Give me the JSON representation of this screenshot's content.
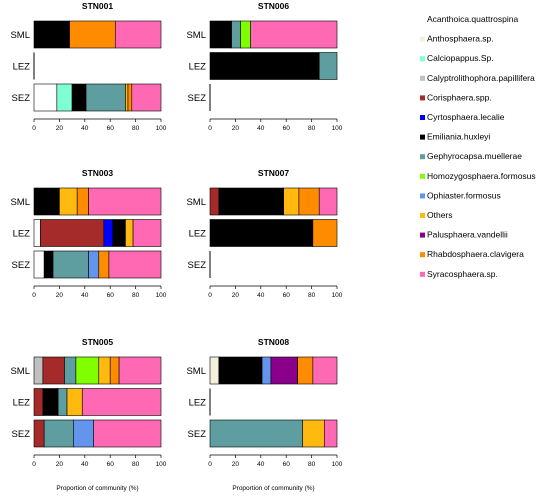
{
  "chart_data": {
    "type": "bar",
    "orientation": "horizontal",
    "stacked": true,
    "xlabel": "Proportion of community (%)",
    "xlim": [
      0,
      100
    ],
    "xticks": [
      0,
      20,
      40,
      60,
      80,
      100
    ],
    "categories": [
      "SML",
      "LEZ",
      "SEZ"
    ],
    "legend": [
      {
        "name": "Acanthoica.quattrospina",
        "color": "#ffffff"
      },
      {
        "name": "Anthosphaera.sp.",
        "color": "#f5f0dc"
      },
      {
        "name": "Calciopappus.Sp.",
        "color": "#7fffd4"
      },
      {
        "name": "Calyptrolithophora.papillifera",
        "color": "#c0c0c0"
      },
      {
        "name": "Corisphaera.spp.",
        "color": "#a52a2a"
      },
      {
        "name": "Cyrtosphaera.lecalie",
        "color": "#0000ff"
      },
      {
        "name": "Emiliania.huxleyi",
        "color": "#000000"
      },
      {
        "name": "Gephyrocapsa.muellerae",
        "color": "#5f9ea0"
      },
      {
        "name": "Homozygosphaera.formosus",
        "color": "#7fff00"
      },
      {
        "name": "Ophiaster.formosus",
        "color": "#6495ed"
      },
      {
        "name": "Others",
        "color": "#ffb90f"
      },
      {
        "name": "Palusphaera.vandellii",
        "color": "#8b008b"
      },
      {
        "name": "Rhabdosphaera.clavigera",
        "color": "#ff8c00"
      },
      {
        "name": "Syracosphaera.sp.",
        "color": "#ff69b4"
      }
    ],
    "panels": [
      {
        "title": "STN001",
        "rows": [
          {
            "label": "SML",
            "segments": [
              {
                "taxon": "Emiliania.huxleyi",
                "value": 28
              },
              {
                "taxon": "Rhabdosphaera.clavigera",
                "value": 36
              },
              {
                "taxon": "Syracosphaera.sp.",
                "value": 36
              }
            ]
          },
          {
            "label": "LEZ",
            "segments": []
          },
          {
            "label": "SEZ",
            "segments": [
              {
                "taxon": "Acanthoica.quattrospina",
                "value": 18
              },
              {
                "taxon": "Calciopappus.Sp.",
                "value": 12
              },
              {
                "taxon": "Emiliania.huxleyi",
                "value": 11
              },
              {
                "taxon": "Gephyrocapsa.muellerae",
                "value": 31
              },
              {
                "taxon": "Others",
                "value": 2
              },
              {
                "taxon": "Rhabdosphaera.clavigera",
                "value": 3
              },
              {
                "taxon": "Syracosphaera.sp.",
                "value": 23
              }
            ]
          }
        ]
      },
      {
        "title": "STN006",
        "rows": [
          {
            "label": "SML",
            "segments": [
              {
                "taxon": "Emiliania.huxleyi",
                "value": 17
              },
              {
                "taxon": "Gephyrocapsa.muellerae",
                "value": 7
              },
              {
                "taxon": "Homozygosphaera.formosus",
                "value": 8
              },
              {
                "taxon": "Syracosphaera.sp.",
                "value": 68
              }
            ]
          },
          {
            "label": "LEZ",
            "segments": [
              {
                "taxon": "Emiliania.huxleyi",
                "value": 86
              },
              {
                "taxon": "Gephyrocapsa.muellerae",
                "value": 14
              }
            ]
          },
          {
            "label": "SEZ",
            "segments": []
          }
        ]
      },
      {
        "title": "STN003",
        "rows": [
          {
            "label": "SML",
            "segments": [
              {
                "taxon": "Emiliania.huxleyi",
                "value": 20
              },
              {
                "taxon": "Others",
                "value": 14
              },
              {
                "taxon": "Rhabdosphaera.clavigera",
                "value": 9
              },
              {
                "taxon": "Syracosphaera.sp.",
                "value": 57
              }
            ]
          },
          {
            "label": "LEZ",
            "segments": [
              {
                "taxon": "Acanthoica.quattrospina",
                "value": 5
              },
              {
                "taxon": "Corisphaera.spp.",
                "value": 50
              },
              {
                "taxon": "Cyrtosphaera.lecalie",
                "value": 7
              },
              {
                "taxon": "Emiliania.huxleyi",
                "value": 10
              },
              {
                "taxon": "Others",
                "value": 6
              },
              {
                "taxon": "Syracosphaera.sp.",
                "value": 22
              }
            ]
          },
          {
            "label": "SEZ",
            "segments": [
              {
                "taxon": "Acanthoica.quattrospina",
                "value": 8
              },
              {
                "taxon": "Emiliania.huxleyi",
                "value": 7
              },
              {
                "taxon": "Gephyrocapsa.muellerae",
                "value": 28
              },
              {
                "taxon": "Ophiaster.formosus",
                "value": 8
              },
              {
                "taxon": "Rhabdosphaera.clavigera",
                "value": 8
              },
              {
                "taxon": "Syracosphaera.sp.",
                "value": 41
              }
            ]
          }
        ]
      },
      {
        "title": "STN007",
        "rows": [
          {
            "label": "SML",
            "segments": [
              {
                "taxon": "Corisphaera.spp.",
                "value": 7
              },
              {
                "taxon": "Emiliania.huxleyi",
                "value": 51
              },
              {
                "taxon": "Others",
                "value": 12
              },
              {
                "taxon": "Rhabdosphaera.clavigera",
                "value": 16
              },
              {
                "taxon": "Syracosphaera.sp.",
                "value": 14
              }
            ]
          },
          {
            "label": "LEZ",
            "segments": [
              {
                "taxon": "Emiliania.huxleyi",
                "value": 81
              },
              {
                "taxon": "Rhabdosphaera.clavigera",
                "value": 19
              }
            ]
          },
          {
            "label": "SEZ",
            "segments": []
          }
        ]
      },
      {
        "title": "STN005",
        "rows": [
          {
            "label": "SML",
            "segments": [
              {
                "taxon": "Calyptrolithophora.papillifera",
                "value": 7
              },
              {
                "taxon": "Corisphaera.spp.",
                "value": 17
              },
              {
                "taxon": "Gephyrocapsa.muellerae",
                "value": 9
              },
              {
                "taxon": "Homozygosphaera.formosus",
                "value": 18
              },
              {
                "taxon": "Others",
                "value": 9
              },
              {
                "taxon": "Rhabdosphaera.clavigera",
                "value": 7
              },
              {
                "taxon": "Syracosphaera.sp.",
                "value": 33
              }
            ]
          },
          {
            "label": "LEZ",
            "segments": [
              {
                "taxon": "Corisphaera.spp.",
                "value": 7
              },
              {
                "taxon": "Emiliania.huxleyi",
                "value": 12
              },
              {
                "taxon": "Gephyrocapsa.muellerae",
                "value": 7
              },
              {
                "taxon": "Others",
                "value": 12
              },
              {
                "taxon": "Syracosphaera.sp.",
                "value": 62
              }
            ]
          },
          {
            "label": "SEZ",
            "segments": [
              {
                "taxon": "Corisphaera.spp.",
                "value": 8
              },
              {
                "taxon": "Gephyrocapsa.muellerae",
                "value": 23
              },
              {
                "taxon": "Ophiaster.formosus",
                "value": 16
              },
              {
                "taxon": "Syracosphaera.sp.",
                "value": 53
              }
            ]
          }
        ]
      },
      {
        "title": "STN008",
        "rows": [
          {
            "label": "SML",
            "segments": [
              {
                "taxon": "Anthosphaera.sp.",
                "value": 7
              },
              {
                "taxon": "Emiliania.huxleyi",
                "value": 34
              },
              {
                "taxon": "Ophiaster.formosus",
                "value": 7
              },
              {
                "taxon": "Palusphaera.vandellii",
                "value": 21
              },
              {
                "taxon": "Rhabdosphaera.clavigera",
                "value": 12
              },
              {
                "taxon": "Syracosphaera.sp.",
                "value": 19
              }
            ]
          },
          {
            "label": "LEZ",
            "segments": []
          },
          {
            "label": "SEZ",
            "segments": [
              {
                "taxon": "Gephyrocapsa.muellerae",
                "value": 73
              },
              {
                "taxon": "Others",
                "value": 17
              },
              {
                "taxon": "Syracosphaera.sp.",
                "value": 10
              }
            ]
          }
        ]
      }
    ]
  }
}
